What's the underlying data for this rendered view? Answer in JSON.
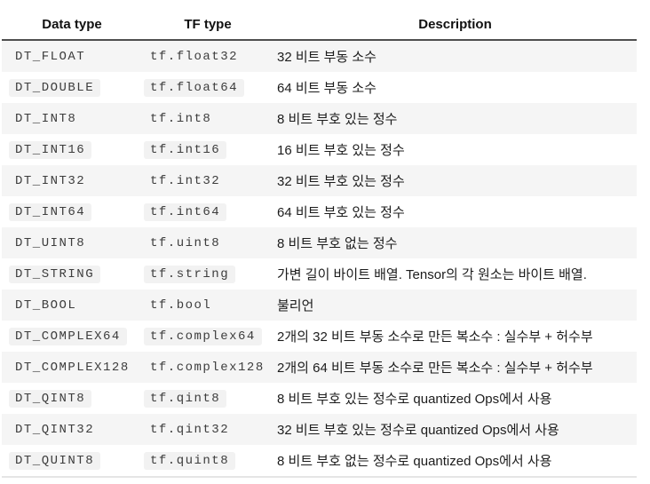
{
  "table": {
    "columns": [
      {
        "label": "Data type"
      },
      {
        "label": "TF type"
      },
      {
        "label": "Description"
      }
    ],
    "rows": [
      {
        "data_type": "DT_FLOAT",
        "tf_type": "tf.float32",
        "description": "32 비트 부동 소수"
      },
      {
        "data_type": "DT_DOUBLE",
        "tf_type": "tf.float64",
        "description": "64 비트 부동 소수"
      },
      {
        "data_type": "DT_INT8",
        "tf_type": "tf.int8",
        "description": "8 비트 부호 있는 정수"
      },
      {
        "data_type": "DT_INT16",
        "tf_type": "tf.int16",
        "description": "16 비트 부호 있는 정수"
      },
      {
        "data_type": "DT_INT32",
        "tf_type": "tf.int32",
        "description": "32 비트 부호 있는 정수"
      },
      {
        "data_type": "DT_INT64",
        "tf_type": "tf.int64",
        "description": "64 비트 부호 있는 정수"
      },
      {
        "data_type": "DT_UINT8",
        "tf_type": "tf.uint8",
        "description": "8 비트 부호 없는 정수"
      },
      {
        "data_type": "DT_STRING",
        "tf_type": "tf.string",
        "description": "가변 길이 바이트 배열. Tensor의 각 원소는 바이트 배열."
      },
      {
        "data_type": "DT_BOOL",
        "tf_type": "tf.bool",
        "description": "불리언"
      },
      {
        "data_type": "DT_COMPLEX64",
        "tf_type": "tf.complex64",
        "description": "2개의 32 비트 부동 소수로 만든 복소수 : 실수부 + 허수부"
      },
      {
        "data_type": "DT_COMPLEX128",
        "tf_type": "tf.complex128",
        "description": "2개의 64 비트 부동 소수로 만든 복소수 : 실수부 + 허수부"
      },
      {
        "data_type": "DT_QINT8",
        "tf_type": "tf.qint8",
        "description": "8 비트 부호 있는 정수로 quantized Ops에서 사용"
      },
      {
        "data_type": "DT_QINT32",
        "tf_type": "tf.qint32",
        "description": "32 비트 부호 있는 정수로 quantized Ops에서 사용"
      },
      {
        "data_type": "DT_QUINT8",
        "tf_type": "tf.quint8",
        "description": "8 비트 부호 없는 정수로 quantized Ops에서 사용"
      }
    ]
  },
  "colors": {
    "page_bg": "#ffffff",
    "header_text": "#111111",
    "header_border": "#4f4f4f",
    "stripe_bg": "#f5f5f5",
    "badge_bg": "#f2f2f2",
    "code_text": "#3d3d3d",
    "desc_text": "#1c1c1c",
    "table_bottom_border": "#e5e5e5"
  }
}
